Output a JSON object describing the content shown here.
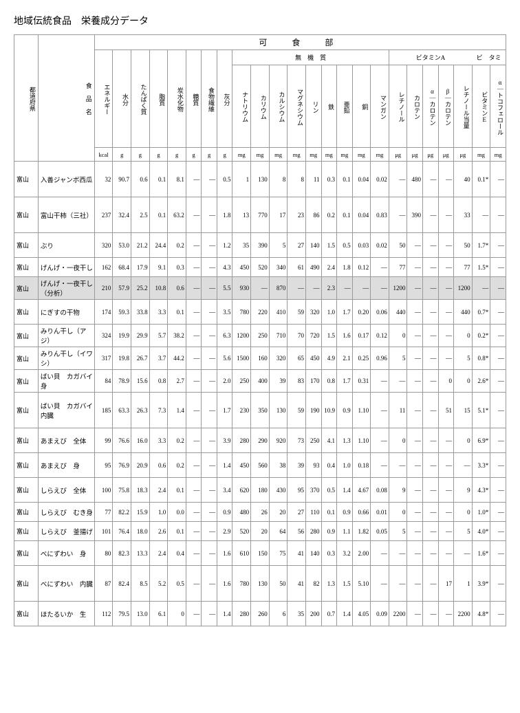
{
  "page_title": "地域伝統食品　栄養成分データ",
  "edible_label": "可　食　部",
  "group_labels": {
    "minerals": "無　機　質",
    "vitaminA": "ビタミンA",
    "vitamin_bt": "ビ　タミ"
  },
  "header_cols": {
    "pref": "都道府県",
    "name": "食 品 名",
    "energy": "エネルギー",
    "water": "水分",
    "protein": "たんぱく質",
    "fat": "脂質",
    "carb": "炭水化物",
    "sugar": "糖質",
    "fiber": "食物繊維",
    "ash": "灰分",
    "na": "ナトリウム",
    "k": "カリウム",
    "ca": "カルシウム",
    "mg": "マグネシウム",
    "p": "リン",
    "fe": "鉄",
    "zn": "亜鉛",
    "cu": "銅",
    "mn": "マンガン",
    "retinol": "レチノール",
    "carotene": "カロテン",
    "a_carotene": "α｜カロテン",
    "b_carotene": "β｜カロテン",
    "retinol_eq": "レチノール当量",
    "ve": "ビタミンE",
    "a_toco": "α｜トコフェロール"
  },
  "units": {
    "kcal": "kcal",
    "g": "g",
    "mg": "mg",
    "ug": "μg"
  },
  "rows": [
    {
      "h": "tall",
      "pref": "富山",
      "name": "入善ジャンボ西瓜",
      "v": [
        "32",
        "90.7",
        "0.6",
        "0.1",
        "8.1",
        "―",
        "―",
        "0.5",
        "1",
        "130",
        "8",
        "8",
        "11",
        "0.3",
        "0.1",
        "0.04",
        "0.02",
        "―",
        "480",
        "―",
        "―",
        "40",
        "0.1*",
        "―"
      ]
    },
    {
      "h": "tall",
      "pref": "富山",
      "name": "富山干柿（三社）",
      "v": [
        "237",
        "32.4",
        "2.5",
        "0.1",
        "63.2",
        "―",
        "―",
        "1.8",
        "13",
        "770",
        "17",
        "23",
        "86",
        "0.2",
        "0.1",
        "0.04",
        "0.83",
        "―",
        "390",
        "―",
        "―",
        "33",
        "―",
        "―"
      ]
    },
    {
      "h": "med",
      "pref": "富山",
      "name": "ぶり",
      "v": [
        "320",
        "53.0",
        "21.2",
        "24.4",
        "0.2",
        "―",
        "―",
        "1.2",
        "35",
        "390",
        "5",
        "27",
        "140",
        "1.5",
        "0.5",
        "0.03",
        "0.02",
        "50",
        "―",
        "―",
        "―",
        "50",
        "1.7*",
        "―"
      ]
    },
    {
      "h": "short",
      "pref": "富山",
      "name": "げんげ・一夜干し",
      "v": [
        "162",
        "68.4",
        "17.9",
        "9.1",
        "0.3",
        "―",
        "―",
        "4.3",
        "450",
        "520",
        "340",
        "61",
        "490",
        "2.4",
        "1.8",
        "0.12",
        "―",
        "77",
        "―",
        "―",
        "―",
        "77",
        "1.5*",
        "―"
      ]
    },
    {
      "h": "short",
      "pref": "富山",
      "name": "げんげ・一夜干し（分析）",
      "hl": true,
      "v": [
        "210",
        "57.9",
        "25.2",
        "10.8",
        "0.6",
        "―",
        "―",
        "5.5",
        "930",
        "―",
        "870",
        "―",
        "―",
        "2.3",
        "―",
        "―",
        "―",
        "1200",
        "―",
        "―",
        "―",
        "1200",
        "―",
        "―"
      ]
    },
    {
      "h": "med",
      "pref": "富山",
      "name": "にぎすの干物",
      "v": [
        "174",
        "59.3",
        "33.8",
        "3.3",
        "0.1",
        "―",
        "―",
        "3.5",
        "780",
        "220",
        "410",
        "59",
        "320",
        "1.0",
        "1.7",
        "0.20",
        "0.06",
        "440",
        "―",
        "―",
        "―",
        "440",
        "0.7*",
        "―"
      ]
    },
    {
      "h": "short",
      "pref": "富山",
      "name": "みりん干し（アジ）",
      "v": [
        "324",
        "19.9",
        "29.9",
        "5.7",
        "38.2",
        "―",
        "―",
        "6.3",
        "1200",
        "250",
        "710",
        "70",
        "720",
        "1.5",
        "1.6",
        "0.17",
        "0.12",
        "0",
        "―",
        "―",
        "―",
        "0",
        "0.2*",
        "―"
      ]
    },
    {
      "h": "short",
      "pref": "富山",
      "name": "みりん干し（イワシ）",
      "v": [
        "317",
        "19.8",
        "26.7",
        "3.7",
        "44.2",
        "―",
        "―",
        "5.6",
        "1500",
        "160",
        "320",
        "65",
        "450",
        "4.9",
        "2.1",
        "0.25",
        "0.96",
        "5",
        "―",
        "―",
        "―",
        "5",
        "0.8*",
        "―"
      ]
    },
    {
      "h": "short",
      "pref": "富山",
      "name": "ばい貝　カガバイ　身",
      "v": [
        "84",
        "78.9",
        "15.6",
        "0.8",
        "2.7",
        "―",
        "―",
        "2.0",
        "250",
        "400",
        "39",
        "83",
        "170",
        "0.8",
        "1.7",
        "0.31",
        "―",
        "―",
        "―",
        "―",
        "0",
        "0",
        "2.6*",
        "―"
      ]
    },
    {
      "h": "tall",
      "pref": "富山",
      "name": "ばい貝　カガバイ　内臓",
      "v": [
        "185",
        "63.3",
        "26.3",
        "7.3",
        "1.4",
        "―",
        "―",
        "1.7",
        "230",
        "350",
        "130",
        "59",
        "190",
        "10.9",
        "0.9",
        "1.10",
        "―",
        "11",
        "―",
        "―",
        "51",
        "15",
        "5.1*",
        "―"
      ]
    },
    {
      "h": "med",
      "pref": "富山",
      "name": "あまえび　全体",
      "v": [
        "99",
        "76.6",
        "16.0",
        "3.3",
        "0.2",
        "―",
        "―",
        "3.9",
        "280",
        "290",
        "920",
        "73",
        "250",
        "4.1",
        "1.3",
        "1.10",
        "―",
        "0",
        "―",
        "―",
        "―",
        "0",
        "6.9*",
        "―"
      ]
    },
    {
      "h": "med",
      "pref": "富山",
      "name": "あまえび　身",
      "v": [
        "95",
        "76.9",
        "20.9",
        "0.6",
        "0.2",
        "―",
        "―",
        "1.4",
        "450",
        "560",
        "38",
        "39",
        "93",
        "0.4",
        "1.0",
        "0.18",
        "―",
        "―",
        "―",
        "―",
        "―",
        "―",
        "3.3*",
        "―"
      ]
    },
    {
      "h": "med",
      "pref": "富山",
      "name": "しらえび　全体",
      "v": [
        "100",
        "75.8",
        "18.3",
        "2.4",
        "0.1",
        "―",
        "―",
        "3.4",
        "620",
        "180",
        "430",
        "95",
        "370",
        "0.5",
        "1.4",
        "4.67",
        "0.08",
        "9",
        "―",
        "―",
        "―",
        "9",
        "4.3*",
        "―"
      ]
    },
    {
      "h": "short",
      "pref": "富山",
      "name": "しらえび　むき身",
      "v": [
        "77",
        "82.2",
        "15.9",
        "1.0",
        "0.0",
        "―",
        "―",
        "0.9",
        "480",
        "26",
        "20",
        "27",
        "110",
        "0.1",
        "0.9",
        "0.66",
        "0.01",
        "0",
        "―",
        "―",
        "―",
        "0",
        "1.0*",
        "―"
      ]
    },
    {
      "h": "short",
      "pref": "富山",
      "name": "しらえび　釜揚げ",
      "v": [
        "101",
        "76.4",
        "18.0",
        "2.6",
        "0.1",
        "―",
        "―",
        "2.9",
        "520",
        "20",
        "64",
        "56",
        "280",
        "0.9",
        "1.1",
        "1.82",
        "0.05",
        "5",
        "―",
        "―",
        "―",
        "5",
        "4.0*",
        "―"
      ]
    },
    {
      "h": "med",
      "pref": "富山",
      "name": "べにずわい　身",
      "v": [
        "80",
        "82.3",
        "13.3",
        "2.4",
        "0.4",
        "―",
        "―",
        "1.6",
        "610",
        "150",
        "75",
        "41",
        "140",
        "0.3",
        "3.2",
        "2.00",
        "―",
        "―",
        "―",
        "―",
        "―",
        "―",
        "1.6*",
        "―"
      ]
    },
    {
      "h": "tall",
      "pref": "富山",
      "name": "べにずわい　内臓",
      "v": [
        "87",
        "82.4",
        "8.5",
        "5.2",
        "0.5",
        "―",
        "―",
        "1.6",
        "780",
        "130",
        "50",
        "41",
        "82",
        "1.3",
        "1.5",
        "5.10",
        "―",
        "―",
        "―",
        "―",
        "17",
        "1",
        "3.9*",
        "―"
      ]
    },
    {
      "h": "med",
      "pref": "富山",
      "name": "ほたるいか　生",
      "v": [
        "112",
        "79.5",
        "13.0",
        "6.1",
        "0",
        "―",
        "―",
        "1.4",
        "280",
        "260",
        "6",
        "35",
        "200",
        "0.7",
        "1.4",
        "4.05",
        "0.09",
        "2200",
        "―",
        "―",
        "―",
        "2200",
        "4.8*",
        "―"
      ]
    }
  ],
  "style": {
    "background": "#ffffff",
    "text_color": "#000000",
    "border_color": "#999999",
    "highlight_bg": "#dddddd",
    "title_fontsize": 14,
    "cell_fontsize": 9
  }
}
